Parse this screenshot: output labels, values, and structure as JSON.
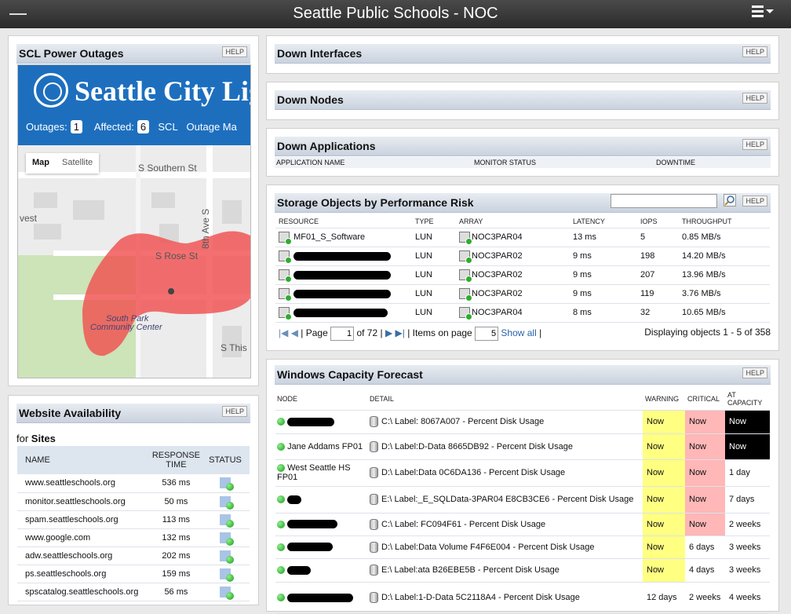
{
  "header": {
    "title": "Seattle Public Schools - NOC"
  },
  "help_label": "HELP",
  "outages": {
    "title": "SCL Power Outages",
    "brand": "Seattle City Light",
    "outages_label": "Outages:",
    "outages_value": "1",
    "affected_label": "Affected:",
    "affected_value": "6",
    "scl_label": "SCL",
    "outage_map_label": "Outage Ma",
    "map_tab": "Map",
    "satellite_tab": "Satellite",
    "streets": [
      "S Southern St",
      "S Rose St",
      "8th Ave S",
      "vest",
      "South Park",
      "Community Center",
      "S This"
    ]
  },
  "website": {
    "title": "Website Availability",
    "for_label": "for",
    "for_value": "Sites",
    "columns": [
      "NAME",
      "RESPONSE TIME",
      "STATUS"
    ],
    "rows": [
      {
        "name": "www.seattleschools.org",
        "time": "536 ms"
      },
      {
        "name": "monitor.seattleschools.org",
        "time": "50 ms"
      },
      {
        "name": "spam.seattleschools.org",
        "time": "113 ms"
      },
      {
        "name": "www.google.com",
        "time": "132 ms"
      },
      {
        "name": "adw.seattleschools.org",
        "time": "202 ms"
      },
      {
        "name": "ps.seattleschools.org",
        "time": "159 ms"
      },
      {
        "name": "spscatalog.seattleschools.org",
        "time": "56 ms"
      }
    ]
  },
  "down_interfaces": {
    "title": "Down Interfaces"
  },
  "down_nodes": {
    "title": "Down Nodes"
  },
  "down_apps": {
    "title": "Down Applications",
    "columns": [
      "APPLICATION NAME",
      "MONITOR STATUS",
      "DOWNTIME"
    ]
  },
  "storage": {
    "title": "Storage Objects by Performance Risk",
    "search_placeholder": "",
    "columns": [
      "RESOURCE",
      "TYPE",
      "ARRAY",
      "LATENCY",
      "IOPS",
      "THROUGHPUT"
    ],
    "rows": [
      {
        "resource": "MF01_S_Software",
        "type": "LUN",
        "array": "NOC3PAR04",
        "latency": "13 ms",
        "iops": "5",
        "throughput": "0.85 MB/s"
      },
      {
        "resource": "",
        "type": "LUN",
        "array": "NOC3PAR02",
        "latency": "9 ms",
        "iops": "198",
        "throughput": "14.20 MB/s"
      },
      {
        "resource": "",
        "type": "LUN",
        "array": "NOC3PAR02",
        "latency": "9 ms",
        "iops": "207",
        "throughput": "13.96 MB/s"
      },
      {
        "resource": "",
        "type": "LUN",
        "array": "NOC3PAR02",
        "latency": "9 ms",
        "iops": "119",
        "throughput": "3.76 MB/s"
      },
      {
        "resource": "",
        "type": "LUN",
        "array": "NOC3PAR04",
        "latency": "8 ms",
        "iops": "32",
        "throughput": "10.65 MB/s"
      }
    ],
    "pager": {
      "page_label": "| Page",
      "page_value": "1",
      "of_label": "of 72 |",
      "items_label": "| Items on page",
      "items_value": "5",
      "show_all": "Show all",
      "end_bar": "|",
      "displaying": "Displaying objects 1 - 5 of 358"
    }
  },
  "capacity": {
    "title": "Windows Capacity Forecast",
    "columns": [
      "NODE",
      "DETAIL",
      "WARNING",
      "CRITICAL",
      "AT CAPACITY"
    ],
    "rows": [
      {
        "node": "",
        "detail": "C:\\ Label: 8067A007 - Percent Disk Usage",
        "warning": "Now",
        "critical": "Now",
        "capacity": "Now"
      },
      {
        "node": "Jane Addams FP01",
        "detail": "D:\\ Label:D-Data 8665DB92 - Percent Disk Usage",
        "warning": "Now",
        "critical": "Now",
        "capacity": "Now"
      },
      {
        "node": "West Seattle HS FP01",
        "detail": "D:\\ Label:Data 0C6DA136 - Percent Disk Usage",
        "warning": "Now",
        "critical": "Now",
        "capacity": "1 day"
      },
      {
        "node": "",
        "detail": "E:\\ Label:_E_SQLData-3PAR04 E8CB3CE6 - Percent Disk Usage",
        "warning": "Now",
        "critical": "Now",
        "capacity": "7 days"
      },
      {
        "node": "",
        "detail": "C:\\ Label: FC094F61 - Percent Disk Usage",
        "warning": "Now",
        "critical": "Now",
        "capacity": "2 weeks"
      },
      {
        "node": "",
        "detail": "D:\\ Label:Data Volume F4F6E004 - Percent Disk Usage",
        "warning": "Now",
        "critical": "6 days",
        "capacity": "3 weeks"
      },
      {
        "node": "",
        "detail": "E:\\ Label:ata B26EBE5B - Percent Disk Usage",
        "warning": "Now",
        "critical": "4 days",
        "capacity": "3 weeks"
      },
      {
        "node": "",
        "detail": "D:\\ Label:1-D-Data 5C2118A4 - Percent Disk Usage",
        "warning": "12 days",
        "critical": "2 weeks",
        "capacity": "4 weeks"
      }
    ]
  }
}
